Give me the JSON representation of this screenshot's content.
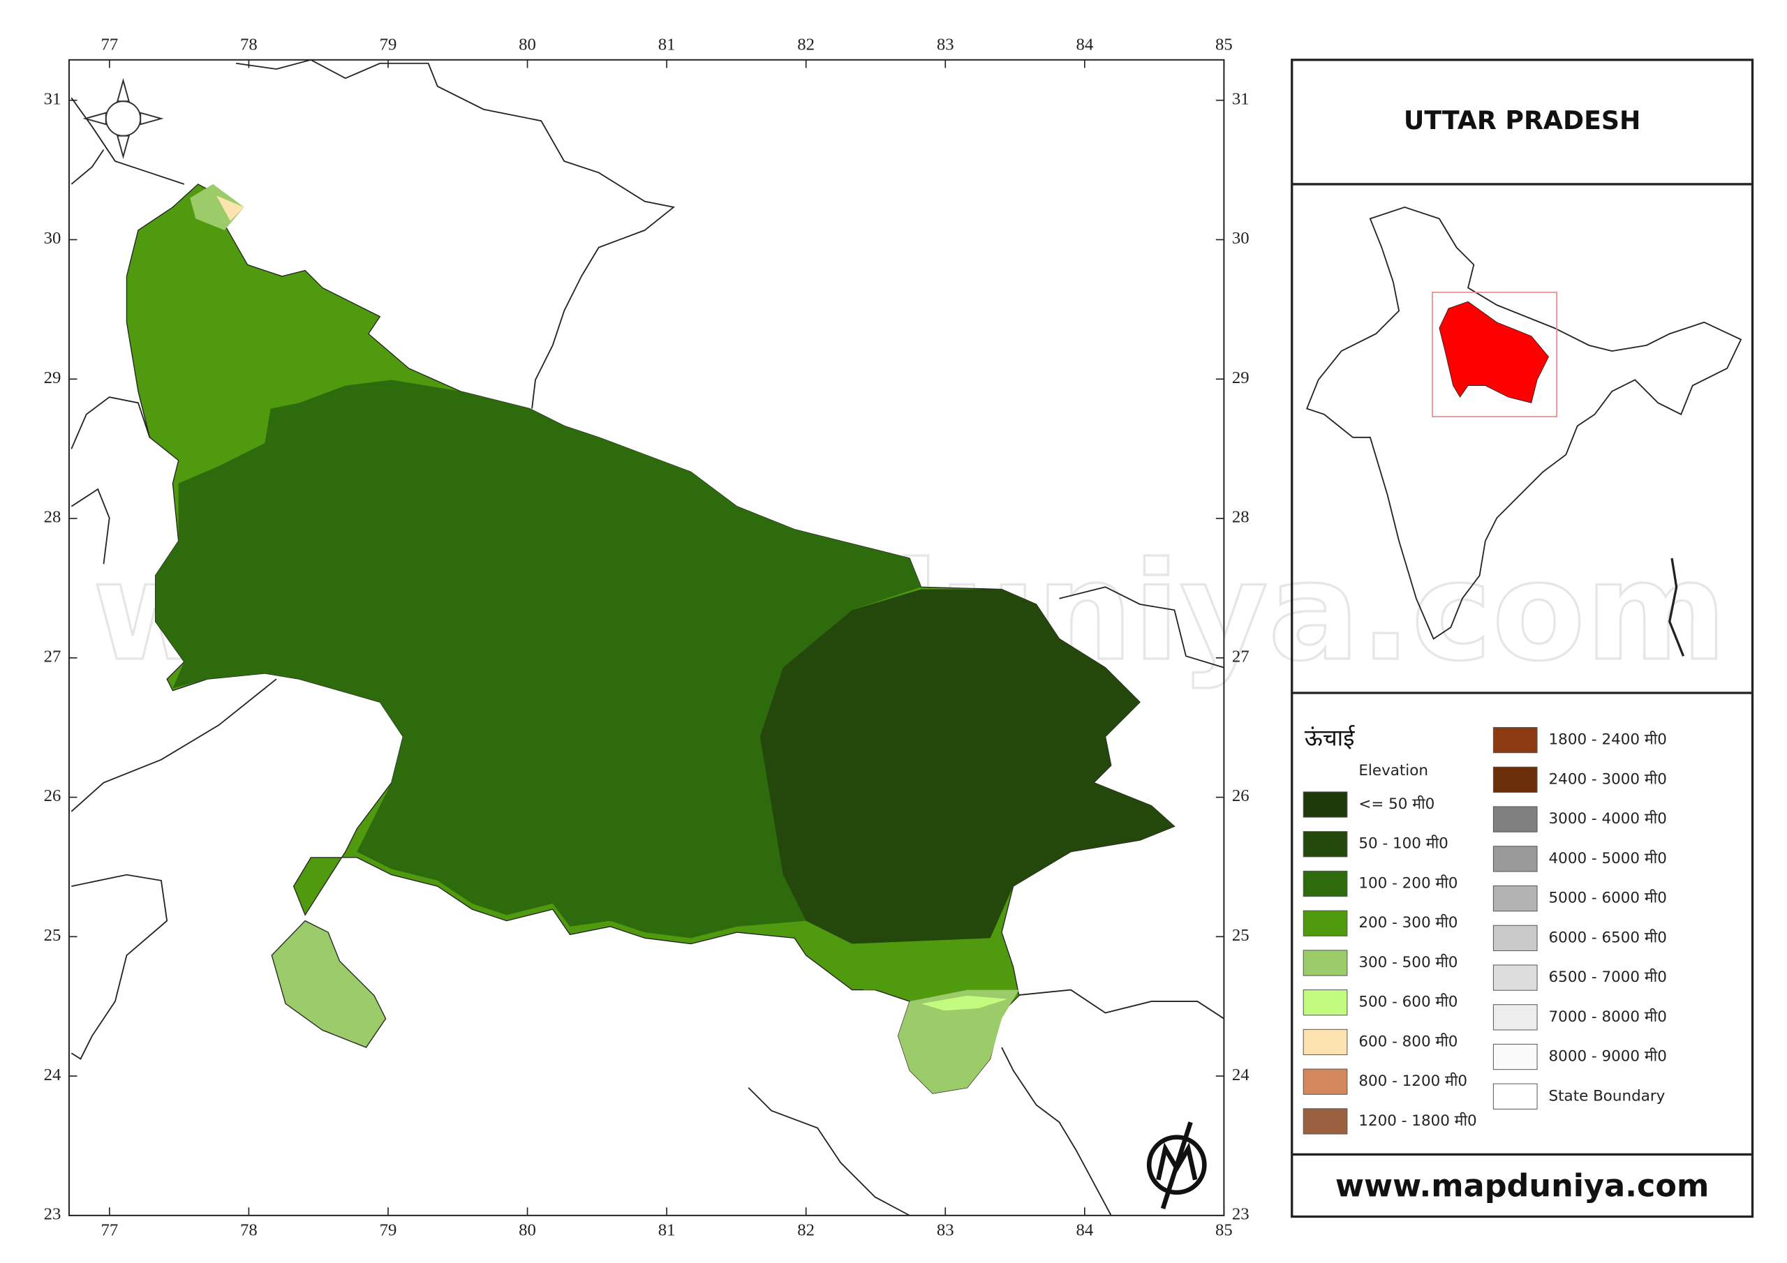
{
  "map": {
    "title": "UTTAR PRADESH",
    "xlim": [
      76.71,
      85
    ],
    "ylim": [
      23,
      31.29
    ],
    "xticks": [
      77,
      78,
      79,
      80,
      81,
      82,
      83,
      84,
      85
    ],
    "yticks": [
      23,
      24,
      25,
      26,
      27,
      28,
      29,
      30,
      31
    ],
    "legend": {
      "title": "ऊंचाई",
      "subtitle": "Elevation",
      "items": [
        {
          "label": "<= 50 मी0",
          "color": "#1e3a0a"
        },
        {
          "label": "50 - 100 मी0",
          "color": "#24480b"
        },
        {
          "label": "100 - 200 मी0",
          "color": "#2e6b0d"
        },
        {
          "label": "200 - 300 मी0",
          "color": "#4f9a0e"
        },
        {
          "label": "300 - 500 मी0",
          "color": "#9ccb6a"
        },
        {
          "label": "500 - 600 मी0",
          "color": "#c3fb80"
        },
        {
          "label": "600 - 800 मी0",
          "color": "#fde3b0"
        },
        {
          "label": "800 - 1200 मी0",
          "color": "#d3875a"
        },
        {
          "label": "1200 - 1800 मी0",
          "color": "#9a6040"
        },
        {
          "label": "1800 - 2400 मी0",
          "color": "#8b3a12"
        },
        {
          "label": "2400 - 3000 मी0",
          "color": "#6b300a"
        },
        {
          "label": "3000 - 4000 मी0",
          "color": "#808080"
        },
        {
          "label": "4000 - 5000 मी0",
          "color": "#9a9a9a"
        },
        {
          "label": "5000 - 6000 मी0",
          "color": "#b3b3b3"
        },
        {
          "label": "6000 - 6500 मी0",
          "color": "#c9c9c9"
        },
        {
          "label": "6500 - 7000 मी0",
          "color": "#dddddd"
        },
        {
          "label": "7000 - 8000 मी0",
          "color": "#ededed"
        },
        {
          "label": "8000 - 9000 मी0",
          "color": "#fafafa"
        },
        {
          "label": "State Boundary",
          "color": "#ffffff"
        }
      ]
    },
    "website": "www.mapduniya.com",
    "watermark": "www.mapduniya.com"
  }
}
